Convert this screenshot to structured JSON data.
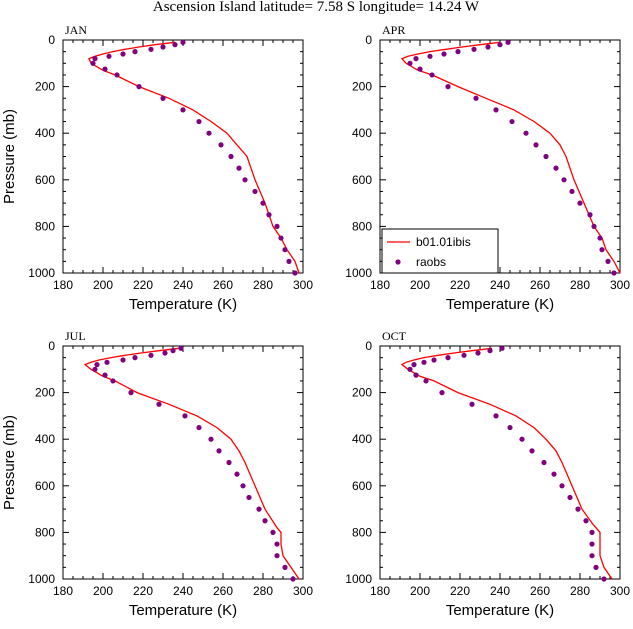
{
  "page_title": "Ascension Island  latitude= 7.58 S longitude= 14.24 W",
  "colors": {
    "model": "#ff0000",
    "obs": "#800080"
  },
  "legend": {
    "model_label": "b01.01ibis",
    "obs_label": "raobs"
  },
  "chart_data": [
    {
      "type": "line",
      "panel_label": "JAN",
      "xlabel": "Temperature (K)",
      "ylabel": "Pressure (mb)",
      "xlim": [
        180,
        300
      ],
      "ylim": [
        1000,
        0
      ],
      "y_inverted": true,
      "xticks": [
        180,
        200,
        220,
        240,
        260,
        280,
        300
      ],
      "yticks": [
        0,
        200,
        400,
        600,
        800,
        1000
      ],
      "series": [
        {
          "name": "b01.01ibis",
          "style": "line",
          "points": [
            [
              236,
              10
            ],
            [
              226,
              20
            ],
            [
              218,
              30
            ],
            [
              211,
              40
            ],
            [
              205,
              50
            ],
            [
              200,
              60
            ],
            [
              196,
              70
            ],
            [
              193,
              80
            ],
            [
              194,
              100
            ],
            [
              200,
              130
            ],
            [
              206,
              150
            ],
            [
              218,
              200
            ],
            [
              233,
              250
            ],
            [
              245,
              300
            ],
            [
              254,
              350
            ],
            [
              262,
              400
            ],
            [
              267,
              450
            ],
            [
              272,
              500
            ],
            [
              276,
              600
            ],
            [
              281,
              700
            ],
            [
              285,
              800
            ],
            [
              289,
              850
            ],
            [
              292,
              900
            ],
            [
              296,
              950
            ],
            [
              298,
              1000
            ]
          ]
        },
        {
          "name": "raobs",
          "style": "markers",
          "points": [
            [
              240,
              10
            ],
            [
              236,
              20
            ],
            [
              230,
              30
            ],
            [
              224,
              40
            ],
            [
              216,
              50
            ],
            [
              210,
              60
            ],
            [
              203,
              70
            ],
            [
              196,
              80
            ],
            [
              195,
              100
            ],
            [
              201,
              125
            ],
            [
              207,
              150
            ],
            [
              218,
              200
            ],
            [
              230,
              250
            ],
            [
              240,
              300
            ],
            [
              248,
              350
            ],
            [
              253,
              400
            ],
            [
              259,
              450
            ],
            [
              264,
              500
            ],
            [
              268,
              550
            ],
            [
              271,
              600
            ],
            [
              276,
              650
            ],
            [
              280,
              700
            ],
            [
              283,
              750
            ],
            [
              287,
              800
            ],
            [
              289,
              850
            ],
            [
              291,
              900
            ],
            [
              293,
              950
            ],
            [
              296,
              1000
            ]
          ]
        }
      ]
    },
    {
      "type": "line",
      "panel_label": "APR",
      "xlabel": "Temperature (K)",
      "ylabel": "",
      "xlim": [
        180,
        300
      ],
      "ylim": [
        1000,
        0
      ],
      "y_inverted": true,
      "xticks": [
        180,
        200,
        220,
        240,
        260,
        280,
        300
      ],
      "yticks": [
        0,
        200,
        400,
        600,
        800,
        1000
      ],
      "series": [
        {
          "name": "b01.01ibis",
          "style": "line",
          "points": [
            [
              240,
              10
            ],
            [
              230,
              20
            ],
            [
              221,
              30
            ],
            [
              213,
              40
            ],
            [
              205,
              50
            ],
            [
              199,
              60
            ],
            [
              194,
              70
            ],
            [
              191,
              80
            ],
            [
              193,
              100
            ],
            [
              199,
              130
            ],
            [
              206,
              150
            ],
            [
              219,
              200
            ],
            [
              233,
              250
            ],
            [
              247,
              300
            ],
            [
              257,
              350
            ],
            [
              265,
              400
            ],
            [
              270,
              450
            ],
            [
              273,
              500
            ],
            [
              277,
              600
            ],
            [
              282,
              700
            ],
            [
              287,
              800
            ],
            [
              291,
              850
            ],
            [
              293,
              900
            ],
            [
              297,
              950
            ],
            [
              300,
              1000
            ]
          ]
        },
        {
          "name": "raobs",
          "style": "markers",
          "points": [
            [
              244,
              10
            ],
            [
              240,
              20
            ],
            [
              234,
              30
            ],
            [
              227,
              40
            ],
            [
              219,
              50
            ],
            [
              212,
              60
            ],
            [
              205,
              70
            ],
            [
              198,
              80
            ],
            [
              195,
              100
            ],
            [
              200,
              125
            ],
            [
              206,
              150
            ],
            [
              214,
              200
            ],
            [
              228,
              250
            ],
            [
              238,
              300
            ],
            [
              246,
              350
            ],
            [
              253,
              400
            ],
            [
              258,
              450
            ],
            [
              263,
              500
            ],
            [
              268,
              550
            ],
            [
              272,
              600
            ],
            [
              276,
              650
            ],
            [
              280,
              700
            ],
            [
              285,
              750
            ],
            [
              287,
              800
            ],
            [
              290,
              850
            ],
            [
              291,
              900
            ],
            [
              294,
              950
            ],
            [
              297,
              1000
            ]
          ]
        }
      ]
    },
    {
      "type": "line",
      "panel_label": "JUL",
      "xlabel": "Temperature (K)",
      "ylabel": "Pressure (mb)",
      "xlim": [
        180,
        300
      ],
      "ylim": [
        1000,
        0
      ],
      "y_inverted": true,
      "xticks": [
        180,
        200,
        220,
        240,
        260,
        280,
        300
      ],
      "yticks": [
        0,
        200,
        400,
        600,
        800,
        1000
      ],
      "series": [
        {
          "name": "b01.01ibis",
          "style": "line",
          "points": [
            [
              238,
              10
            ],
            [
              228,
              20
            ],
            [
              219,
              30
            ],
            [
              211,
              40
            ],
            [
              204,
              50
            ],
            [
              198,
              60
            ],
            [
              194,
              70
            ],
            [
              191,
              80
            ],
            [
              194,
              100
            ],
            [
              200,
              130
            ],
            [
              206,
              150
            ],
            [
              217,
              200
            ],
            [
              233,
              250
            ],
            [
              247,
              300
            ],
            [
              257,
              350
            ],
            [
              264,
              400
            ],
            [
              268,
              450
            ],
            [
              271,
              500
            ],
            [
              276,
              600
            ],
            [
              281,
              700
            ],
            [
              287,
              780
            ],
            [
              289,
              800
            ],
            [
              289,
              850
            ],
            [
              290,
              900
            ],
            [
              294,
              950
            ],
            [
              298,
              1000
            ]
          ]
        },
        {
          "name": "raobs",
          "style": "markers",
          "points": [
            [
              239,
              10
            ],
            [
              235,
              20
            ],
            [
              231,
              30
            ],
            [
              224,
              40
            ],
            [
              216,
              50
            ],
            [
              210,
              60
            ],
            [
              202,
              70
            ],
            [
              197,
              80
            ],
            [
              196,
              100
            ],
            [
              201,
              125
            ],
            [
              205,
              150
            ],
            [
              214,
              200
            ],
            [
              228,
              250
            ],
            [
              241,
              300
            ],
            [
              248,
              350
            ],
            [
              254,
              400
            ],
            [
              258,
              450
            ],
            [
              263,
              500
            ],
            [
              267,
              550
            ],
            [
              270,
              600
            ],
            [
              273,
              650
            ],
            [
              278,
              700
            ],
            [
              281,
              750
            ],
            [
              285,
              800
            ],
            [
              287,
              850
            ],
            [
              287,
              900
            ],
            [
              291,
              950
            ],
            [
              295,
              1000
            ]
          ]
        }
      ]
    },
    {
      "type": "line",
      "panel_label": "OCT",
      "xlabel": "Temperature (K)",
      "ylabel": "",
      "xlim": [
        180,
        300
      ],
      "ylim": [
        1000,
        0
      ],
      "y_inverted": true,
      "xticks": [
        180,
        200,
        220,
        240,
        260,
        280,
        300
      ],
      "yticks": [
        0,
        200,
        400,
        600,
        800,
        1000
      ],
      "series": [
        {
          "name": "b01.01ibis",
          "style": "line",
          "points": [
            [
              236,
              10
            ],
            [
              226,
              20
            ],
            [
              217,
              30
            ],
            [
              209,
              40
            ],
            [
              202,
              50
            ],
            [
              197,
              60
            ],
            [
              193,
              70
            ],
            [
              191,
              80
            ],
            [
              194,
              100
            ],
            [
              200,
              130
            ],
            [
              207,
              150
            ],
            [
              219,
              200
            ],
            [
              235,
              250
            ],
            [
              248,
              300
            ],
            [
              257,
              350
            ],
            [
              263,
              400
            ],
            [
              268,
              450
            ],
            [
              271,
              500
            ],
            [
              276,
              600
            ],
            [
              281,
              700
            ],
            [
              286,
              760
            ],
            [
              290,
              800
            ],
            [
              290,
              850
            ],
            [
              290,
              900
            ],
            [
              292,
              950
            ],
            [
              296,
              1000
            ]
          ]
        },
        {
          "name": "raobs",
          "style": "markers",
          "points": [
            [
              241,
              10
            ],
            [
              235,
              20
            ],
            [
              229,
              30
            ],
            [
              222,
              40
            ],
            [
              214,
              50
            ],
            [
              207,
              60
            ],
            [
              202,
              70
            ],
            [
              197,
              80
            ],
            [
              195,
              100
            ],
            [
              198,
              125
            ],
            [
              203,
              150
            ],
            [
              211,
              200
            ],
            [
              226,
              250
            ],
            [
              238,
              300
            ],
            [
              245,
              350
            ],
            [
              251,
              400
            ],
            [
              256,
              450
            ],
            [
              262,
              500
            ],
            [
              267,
              550
            ],
            [
              271,
              600
            ],
            [
              275,
              650
            ],
            [
              279,
              700
            ],
            [
              283,
              750
            ],
            [
              286,
              800
            ],
            [
              286,
              850
            ],
            [
              286,
              900
            ],
            [
              288,
              950
            ],
            [
              292,
              1000
            ]
          ]
        }
      ]
    }
  ]
}
